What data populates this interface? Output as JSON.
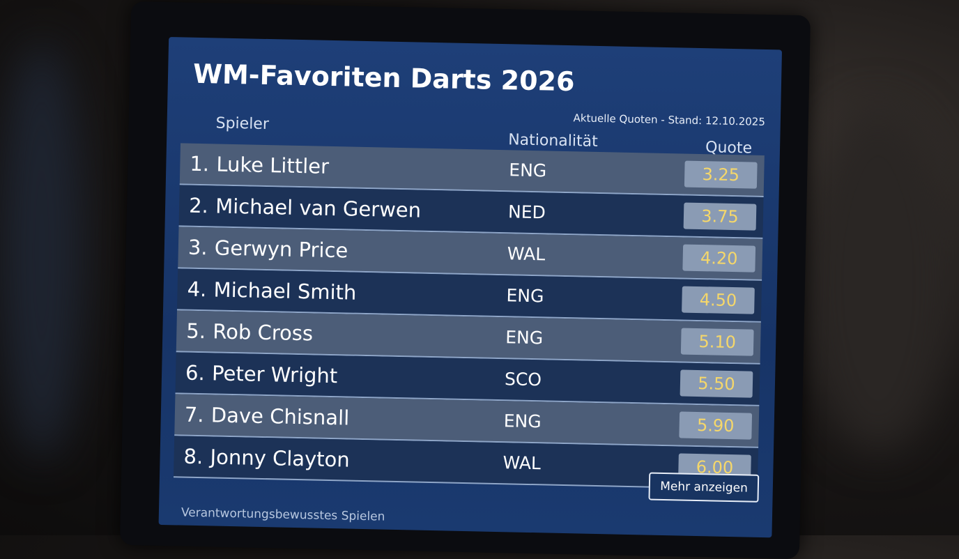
{
  "header": {
    "title": "WM-Favoriten Darts 2026",
    "subtitle": "Aktuelle Quoten - Stand: 12.10.2025"
  },
  "table": {
    "columns": [
      "Spieler",
      "Nationalität",
      "Quote"
    ],
    "rows": [
      [
        "1.",
        "Luke Littler",
        "ENG",
        "3.25"
      ],
      [
        "2.",
        "Michael van Gerwen",
        "NED",
        "3.75"
      ],
      [
        "3.",
        "Gerwyn Price",
        "WAL",
        "4.20"
      ],
      [
        "4.",
        "Michael Smith",
        "ENG",
        "4.50"
      ],
      [
        "5.",
        "Rob Cross",
        "ENG",
        "5.10"
      ],
      [
        "6.",
        "Peter Wright",
        "SCO",
        "5.50"
      ],
      [
        "7.",
        "Dave Chisnall",
        "ENG",
        "5.90"
      ],
      [
        "8.",
        "Jonny Clayton",
        "WAL",
        "6.00"
      ]
    ]
  },
  "button": "Mehr anzeigen",
  "footer": "Verantwortungsbewusstes Spielen"
}
